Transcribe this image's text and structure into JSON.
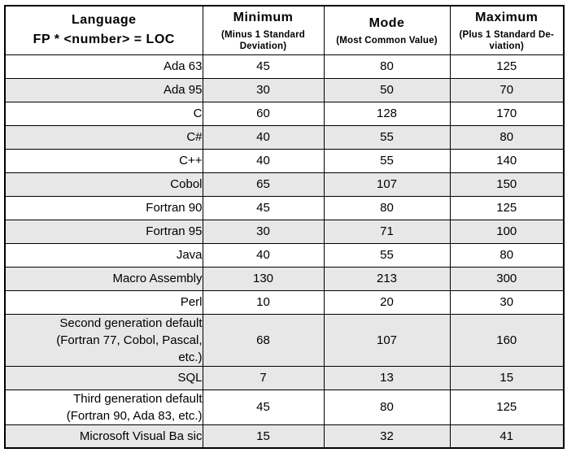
{
  "table": {
    "language_header": "Language\nFP * <number> = LOC",
    "columns": [
      {
        "title": "Minimum",
        "subtitle": "(Minus 1 Standard\nDeviation)"
      },
      {
        "title": "Mode",
        "subtitle": "(Most Common Value)"
      },
      {
        "title": "Maximum",
        "subtitle": "(Plus 1 Standard De-\nviation)"
      }
    ],
    "rows": [
      {
        "language": "Ada 63",
        "min": 45,
        "mode": 80,
        "max": 125,
        "shaded": false
      },
      {
        "language": "Ada 95",
        "min": 30,
        "mode": 50,
        "max": 70,
        "shaded": true
      },
      {
        "language": "C",
        "min": 60,
        "mode": 128,
        "max": 170,
        "shaded": false
      },
      {
        "language": "C#",
        "min": 40,
        "mode": 55,
        "max": 80,
        "shaded": true
      },
      {
        "language": "C++",
        "min": 40,
        "mode": 55,
        "max": 140,
        "shaded": false
      },
      {
        "language": "Cobol",
        "min": 65,
        "mode": 107,
        "max": 150,
        "shaded": true
      },
      {
        "language": "Fortran 90",
        "min": 45,
        "mode": 80,
        "max": 125,
        "shaded": false
      },
      {
        "language": "Fortran 95",
        "min": 30,
        "mode": 71,
        "max": 100,
        "shaded": true
      },
      {
        "language": "Java",
        "min": 40,
        "mode": 55,
        "max": 80,
        "shaded": false
      },
      {
        "language": "Macro Assembly",
        "min": 130,
        "mode": 213,
        "max": 300,
        "shaded": true
      },
      {
        "language": "Perl",
        "min": 10,
        "mode": 20,
        "max": 30,
        "shaded": false
      },
      {
        "language": "Second generation default\n(Fortran 77, Cobol, Pascal,\netc.)",
        "min": 68,
        "mode": 107,
        "max": 160,
        "shaded": true
      },
      {
        "language": "SQL",
        "min": 7,
        "mode": 13,
        "max": 15,
        "shaded": true
      },
      {
        "language": "Third generation default\n(Fortran 90, Ada 83, etc.)",
        "min": 45,
        "mode": 80,
        "max": 125,
        "shaded": false
      },
      {
        "language": "Microsoft Visual Ba sic",
        "min": 15,
        "mode": 32,
        "max": 41,
        "shaded": true
      }
    ]
  },
  "colors": {
    "row_shade": "#e7e7e7",
    "border": "#000000",
    "background": "#ffffff",
    "text": "#000000"
  }
}
